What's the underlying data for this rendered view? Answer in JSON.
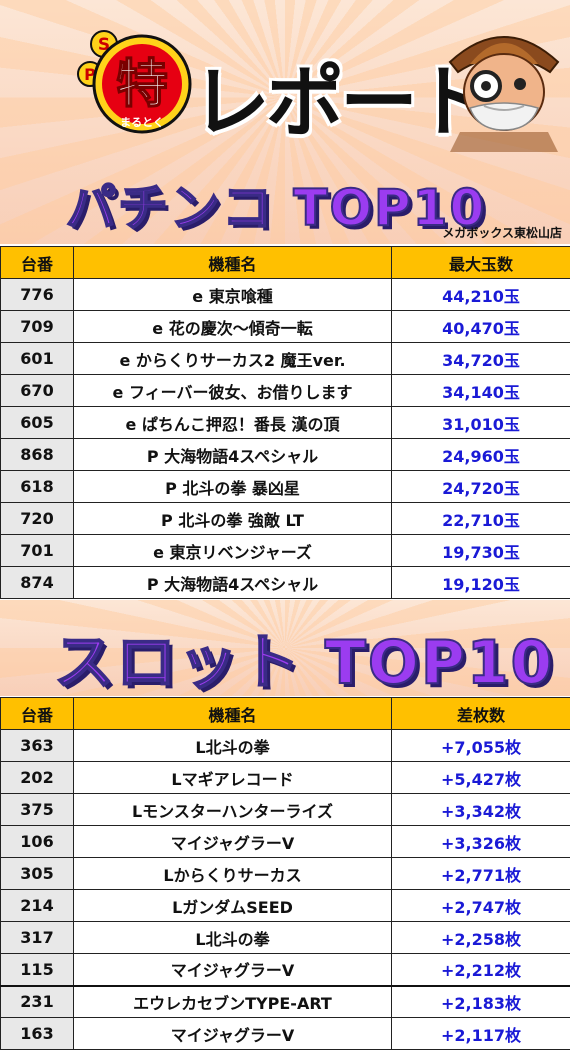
{
  "header": {
    "badge_top": "S",
    "badge_p": "P",
    "badge_main": "特",
    "badge_sub": "まるとく",
    "title": "レポート",
    "store": "メガボックス東松山店"
  },
  "pachinko": {
    "title": "パチンコ TOP10",
    "headers": [
      "台番",
      "機種名",
      "最大玉数"
    ],
    "rows": [
      {
        "no": "776",
        "name": "e 東京喰種",
        "value": "44,210玉"
      },
      {
        "no": "709",
        "name": "e 花の慶次～傾奇一転",
        "value": "40,470玉"
      },
      {
        "no": "601",
        "name": "e からくりサーカス2 魔王ver.",
        "value": "34,720玉"
      },
      {
        "no": "670",
        "name": "e フィーバー彼女、お借りします",
        "value": "34,140玉"
      },
      {
        "no": "605",
        "name": "e ぱちんこ押忍！番長 漢の頂",
        "value": "31,010玉"
      },
      {
        "no": "868",
        "name": "P 大海物語4スペシャル",
        "value": "24,960玉"
      },
      {
        "no": "618",
        "name": "P 北斗の拳 暴凶星",
        "value": "24,720玉"
      },
      {
        "no": "720",
        "name": "P 北斗の拳 強敵 LT",
        "value": "22,710玉"
      },
      {
        "no": "701",
        "name": "e 東京リベンジャーズ",
        "value": "19,730玉"
      },
      {
        "no": "874",
        "name": "P 大海物語4スペシャル",
        "value": "19,120玉"
      }
    ]
  },
  "slot": {
    "title": "スロット TOP10",
    "headers": [
      "台番",
      "機種名",
      "差枚数"
    ],
    "rows": [
      {
        "no": "363",
        "name": "L北斗の拳",
        "value": "+7,055枚"
      },
      {
        "no": "202",
        "name": "Lマギアレコード",
        "value": "+5,427枚"
      },
      {
        "no": "375",
        "name": "Lモンスターハンターライズ",
        "value": "+3,342枚"
      },
      {
        "no": "106",
        "name": "マイジャグラーV",
        "value": "+3,326枚"
      },
      {
        "no": "305",
        "name": "Lからくりサーカス",
        "value": "+2,771枚"
      },
      {
        "no": "214",
        "name": "LガンダムSEED",
        "value": "+2,747枚"
      },
      {
        "no": "317",
        "name": "L北斗の拳",
        "value": "+2,258枚"
      },
      {
        "no": "115",
        "name": "マイジャグラーV",
        "value": "+2,212枚"
      },
      {
        "no": "231",
        "name": "エウレカセブンTYPE-ART",
        "value": "+2,183枚"
      },
      {
        "no": "163",
        "name": "マイジャグラーV",
        "value": "+2,117枚"
      }
    ]
  },
  "colors": {
    "header_row": "#ffc000",
    "number_cell": "#e8e8e8",
    "value_text": "#1a1ad6",
    "title_purple": "#9b3cf0"
  }
}
